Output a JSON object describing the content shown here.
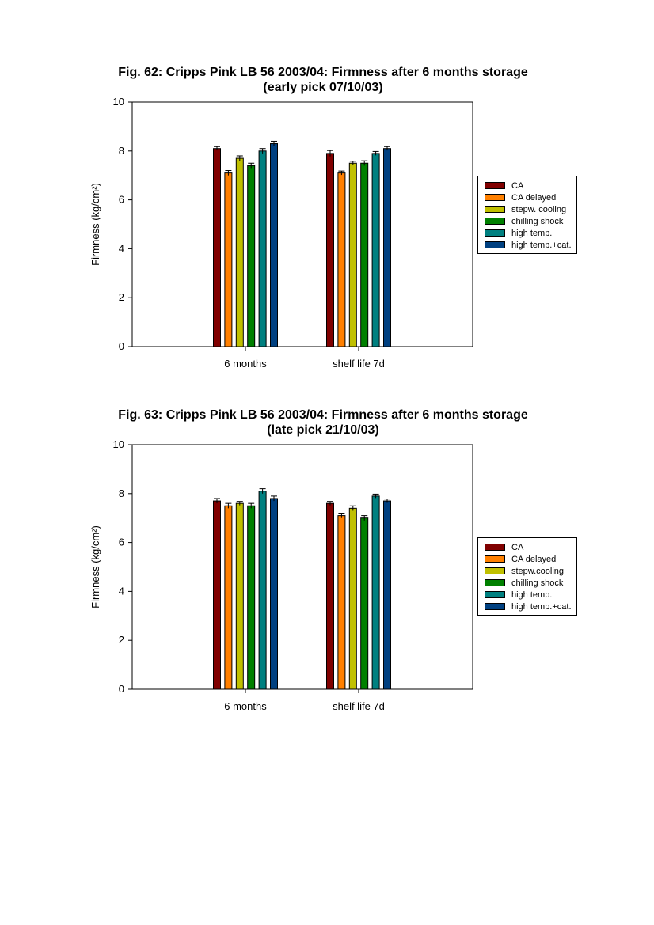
{
  "chart_data": [
    {
      "type": "bar",
      "title": "Fig. 62: Cripps Pink LB 56 2003/04: Firmness after 6 months storage",
      "subtitle": "(early pick 07/10/03)",
      "xlabel": "",
      "ylabel": "Firmness (kg/cm²)",
      "ylim": [
        0,
        10
      ],
      "yticks": [
        "0",
        "2",
        "4",
        "6",
        "8",
        "10"
      ],
      "categories": [
        "6 months",
        "shelf life 7d"
      ],
      "legend_position": "right",
      "series": [
        {
          "name": "CA",
          "color": "#800000",
          "values": [
            8.1,
            7.9
          ],
          "errors": [
            0.08,
            0.12
          ]
        },
        {
          "name": "CA delayed",
          "color": "#ff8000",
          "values": [
            7.1,
            7.1
          ],
          "errors": [
            0.1,
            0.08
          ]
        },
        {
          "name": "stepw. cooling",
          "color": "#c0c000",
          "values": [
            7.7,
            7.5
          ],
          "errors": [
            0.1,
            0.08
          ]
        },
        {
          "name": "chilling shock",
          "color": "#008000",
          "values": [
            7.4,
            7.5
          ],
          "errors": [
            0.1,
            0.1
          ]
        },
        {
          "name": "high temp.",
          "color": "#008080",
          "values": [
            8.0,
            7.9
          ],
          "errors": [
            0.1,
            0.08
          ]
        },
        {
          "name": "high temp.+cat.",
          "color": "#004080",
          "values": [
            8.3,
            8.1
          ],
          "errors": [
            0.1,
            0.08
          ]
        }
      ]
    },
    {
      "type": "bar",
      "title": "Fig. 63: Cripps Pink LB 56 2003/04: Firmness after 6 months storage",
      "subtitle": "(late pick 21/10/03)",
      "xlabel": "",
      "ylabel": "Firmness (kg/cm²)",
      "ylim": [
        0,
        10
      ],
      "yticks": [
        "0",
        "2",
        "4",
        "6",
        "8",
        "10"
      ],
      "categories": [
        "6 months",
        "shelf life 7d"
      ],
      "legend_position": "right",
      "series": [
        {
          "name": "CA",
          "color": "#800000",
          "values": [
            7.7,
            7.6
          ],
          "errors": [
            0.1,
            0.08
          ]
        },
        {
          "name": "CA delayed",
          "color": "#ff8000",
          "values": [
            7.5,
            7.1
          ],
          "errors": [
            0.1,
            0.1
          ]
        },
        {
          "name": "stepw.cooling",
          "color": "#c0c000",
          "values": [
            7.6,
            7.4
          ],
          "errors": [
            0.08,
            0.1
          ]
        },
        {
          "name": "chilling shock",
          "color": "#008000",
          "values": [
            7.5,
            7.0
          ],
          "errors": [
            0.1,
            0.1
          ]
        },
        {
          "name": "high temp.",
          "color": "#008080",
          "values": [
            8.1,
            7.9
          ],
          "errors": [
            0.1,
            0.08
          ]
        },
        {
          "name": "high temp.+cat.",
          "color": "#004080",
          "values": [
            7.8,
            7.7
          ],
          "errors": [
            0.1,
            0.08
          ]
        }
      ]
    }
  ]
}
